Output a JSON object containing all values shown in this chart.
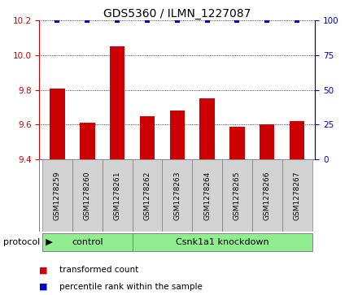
{
  "title": "GDS5360 / ILMN_1227087",
  "samples": [
    "GSM1278259",
    "GSM1278260",
    "GSM1278261",
    "GSM1278262",
    "GSM1278263",
    "GSM1278264",
    "GSM1278265",
    "GSM1278266",
    "GSM1278267"
  ],
  "transformed_counts": [
    9.81,
    9.61,
    10.05,
    9.65,
    9.68,
    9.75,
    9.59,
    9.6,
    9.62
  ],
  "percentile_ranks": [
    100,
    100,
    100,
    100,
    100,
    100,
    100,
    100,
    100
  ],
  "ylim_left": [
    9.4,
    10.2
  ],
  "ylim_right": [
    0,
    100
  ],
  "yticks_left": [
    9.4,
    9.6,
    9.8,
    10.0,
    10.2
  ],
  "yticks_right": [
    0,
    25,
    50,
    75,
    100
  ],
  "bar_color": "#cc0000",
  "dot_color": "#0000cc",
  "bar_width": 0.5,
  "bg_color": "#ffffff",
  "sample_box_color": "#d3d3d3",
  "green_color": "#90ee90",
  "title_fontsize": 10,
  "tick_fontsize": 7.5,
  "sample_fontsize": 6.5,
  "legend_fontsize": 7.5,
  "protocol_fontsize": 8
}
